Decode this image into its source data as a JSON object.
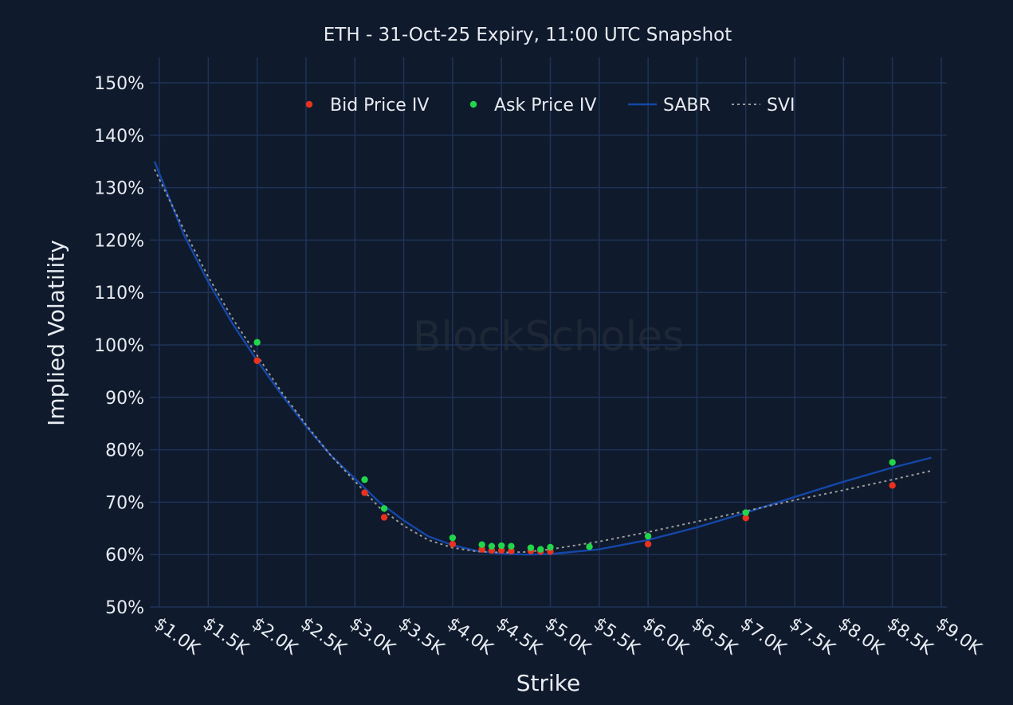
{
  "chart_data": {
    "type": "scatter",
    "title": "ETH - 31-Oct-25 Expiry, 11:00 UTC Snapshot",
    "xlabel": "Strike",
    "ylabel": "Implied Volatility",
    "watermark": "BlockScholes",
    "xlim": [
      950,
      9000
    ],
    "ylim": [
      50,
      150
    ],
    "x_ticks": [
      1000,
      1500,
      2000,
      2500,
      3000,
      3500,
      4000,
      4500,
      5000,
      5500,
      6000,
      6500,
      7000,
      7500,
      8000,
      8500,
      9000
    ],
    "x_tick_labels": [
      "$1.0K",
      "$1.5K",
      "$2.0K",
      "$2.5K",
      "$3.0K",
      "$3.5K",
      "$4.0K",
      "$4.5K",
      "$5.0K",
      "$5.5K",
      "$6.0K",
      "$6.5K",
      "$7.0K",
      "$7.5K",
      "$8.0K",
      "$8.5K",
      "$9.0K"
    ],
    "y_ticks": [
      50,
      60,
      70,
      80,
      90,
      100,
      110,
      120,
      130,
      140,
      150
    ],
    "y_tick_labels": [
      "50%",
      "60%",
      "70%",
      "80%",
      "90%",
      "100%",
      "110%",
      "120%",
      "130%",
      "140%",
      "150%"
    ],
    "grid": true,
    "legend_position": "top-center",
    "series": [
      {
        "name": "Bid Price IV",
        "kind": "markers",
        "color": "#e8321e",
        "x": [
          2000,
          3100,
          3300,
          4000,
          4300,
          4400,
          4500,
          4600,
          4800,
          4900,
          5000,
          6000,
          7000,
          8500
        ],
        "y": [
          97.0,
          71.8,
          67.1,
          62.0,
          61.0,
          60.8,
          60.8,
          60.7,
          60.7,
          60.6,
          60.6,
          62.0,
          67.0,
          73.2
        ]
      },
      {
        "name": "Ask Price IV",
        "kind": "markers",
        "color": "#22d64a",
        "x": [
          2000,
          3100,
          3300,
          4000,
          4300,
          4400,
          4500,
          4600,
          4800,
          4900,
          5000,
          5400,
          6000,
          7000,
          8500
        ],
        "y": [
          100.5,
          74.3,
          68.8,
          63.2,
          61.9,
          61.6,
          61.7,
          61.6,
          61.3,
          61.0,
          61.4,
          61.5,
          63.5,
          68.0,
          77.6
        ]
      },
      {
        "name": "SABR",
        "kind": "line",
        "color": "#1447a8",
        "x": [
          950,
          1250,
          1500,
          1750,
          2000,
          2250,
          2500,
          2750,
          3000,
          3250,
          3500,
          3750,
          4000,
          4250,
          4500,
          4750,
          5000,
          5500,
          6000,
          6500,
          7000,
          7500,
          8000,
          8500,
          8900
        ],
        "y": [
          135.0,
          121.0,
          112.0,
          104.0,
          97.0,
          90.5,
          84.5,
          79.0,
          74.5,
          70.0,
          66.5,
          63.5,
          61.8,
          60.7,
          60.2,
          60.0,
          60.1,
          61.0,
          62.8,
          65.2,
          68.0,
          71.0,
          73.9,
          76.6,
          78.5
        ]
      },
      {
        "name": "SVI",
        "kind": "dotted",
        "color": "#9a9a9a",
        "x": [
          950,
          1250,
          1500,
          1750,
          2000,
          2250,
          2500,
          2750,
          3000,
          3250,
          3500,
          3750,
          4000,
          4250,
          4500,
          4750,
          5000,
          5500,
          6000,
          6500,
          7000,
          7500,
          8000,
          8500,
          8900
        ],
        "y": [
          133.5,
          122.0,
          113.0,
          105.0,
          98.0,
          91.0,
          84.8,
          79.0,
          74.0,
          69.0,
          65.5,
          62.8,
          61.3,
          60.6,
          60.4,
          60.5,
          61.0,
          62.5,
          64.3,
          66.3,
          68.3,
          70.4,
          72.3,
          74.3,
          76.0
        ]
      }
    ]
  }
}
